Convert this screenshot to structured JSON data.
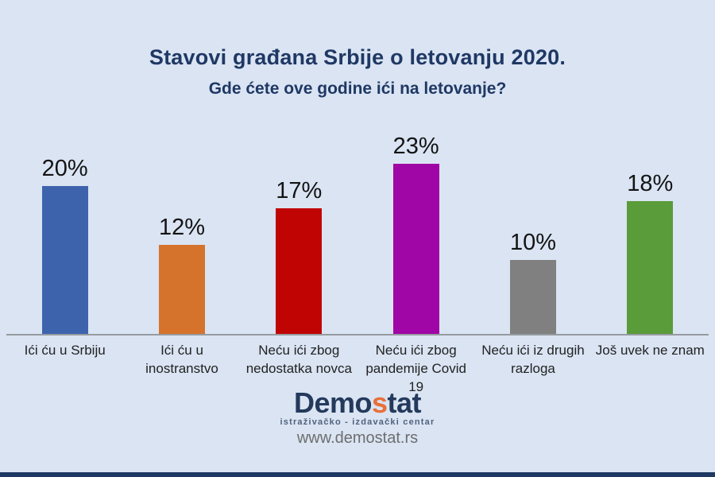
{
  "title": "Stavovi građana Srbije o letovanju 2020.",
  "subtitle": "Gde ćete ove godine ići na letovanje?",
  "chart_data": {
    "type": "bar",
    "title": "Stavovi građana Srbije o letovanju 2020.",
    "subtitle": "Gde ćete ove godine ići na letovanje?",
    "categories": [
      "Ići ću u Srbiju",
      "Ići ću u inostranstvo",
      "Neću ići zbog nedostatka novca",
      "Neću ići zbog pandemije Covid 19",
      "Neću ići iz drugih razloga",
      "Još uvek ne znam"
    ],
    "values": [
      20,
      12,
      17,
      23,
      10,
      18
    ],
    "value_labels": [
      "20%",
      "12%",
      "17%",
      "23%",
      "10%",
      "18%"
    ],
    "colors": [
      "#3E63AD",
      "#D5732C",
      "#C00404",
      "#A005A5",
      "#808080",
      "#5A9B3A"
    ],
    "xlabel": "",
    "ylabel": "",
    "ylim": [
      0,
      25
    ],
    "grid": false,
    "legend": "none",
    "value_label_position": "above-bar"
  },
  "footer": {
    "logo": {
      "demo": "Demo",
      "s": "s",
      "tat": "tat"
    },
    "tagline": "istraživačko - izdavački centar",
    "url": "www.demostat.rs"
  },
  "colors": {
    "background": "#DAE4F3",
    "title_text": "#1F3864",
    "axis_line": "#969BA0",
    "bottom_bar": "#1F3864",
    "logo_navy": "#243A5C",
    "logo_accent": "#E8703A"
  }
}
